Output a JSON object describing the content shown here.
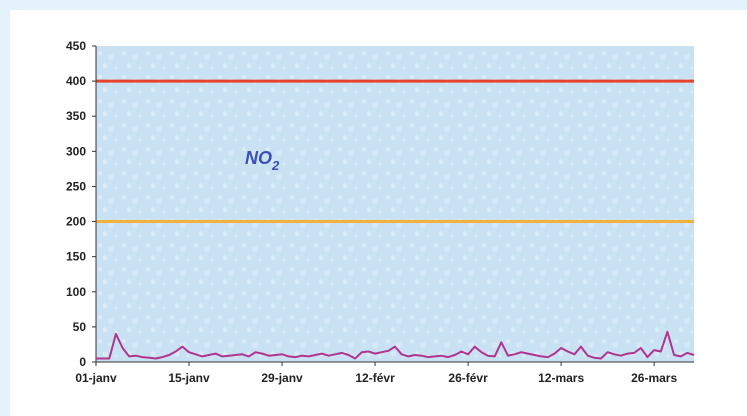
{
  "chart_data": {
    "type": "line",
    "title": "",
    "annotation": "NO 2",
    "annotation_parts": {
      "base": "NO",
      "subscript": "2"
    },
    "xlabel": "",
    "ylabel": "",
    "ylim": [
      0,
      450
    ],
    "yticks": [
      "0",
      "50",
      "100",
      "150",
      "200",
      "250",
      "300",
      "350",
      "400",
      "450"
    ],
    "xticks": [
      {
        "label": "01-janv",
        "day": 0
      },
      {
        "label": "15-janv",
        "day": 14
      },
      {
        "label": "29-janv",
        "day": 28
      },
      {
        "label": "12-févr",
        "day": 42
      },
      {
        "label": "26-févr",
        "day": 56
      },
      {
        "label": "12-mars",
        "day": 70
      },
      {
        "label": "26-mars",
        "day": 84
      }
    ],
    "x_range_days": [
      0,
      90
    ],
    "plot_background": "#c9e2f3",
    "grid": false,
    "legend": "none",
    "reference_lines": [
      {
        "value": 400,
        "color": "#e4432d"
      },
      {
        "value": 200,
        "color": "#f0b23a"
      }
    ],
    "series": [
      {
        "color": "#b0358f",
        "x": [
          0,
          1,
          2,
          3,
          4,
          5,
          6,
          7,
          8,
          9,
          10,
          11,
          12,
          13,
          14,
          15,
          16,
          17,
          18,
          19,
          20,
          21,
          22,
          23,
          24,
          25,
          26,
          27,
          28,
          29,
          30,
          31,
          32,
          33,
          34,
          35,
          36,
          37,
          38,
          39,
          40,
          41,
          42,
          43,
          44,
          45,
          46,
          47,
          48,
          49,
          50,
          51,
          52,
          53,
          54,
          55,
          56,
          57,
          58,
          59,
          60,
          61,
          62,
          63,
          64,
          65,
          66,
          67,
          68,
          69,
          70,
          71,
          72,
          73,
          74,
          75,
          76,
          77,
          78,
          79,
          80,
          81,
          82,
          83,
          84,
          85,
          86,
          87,
          88,
          89,
          90
        ],
        "values": [
          5,
          5,
          5,
          40,
          20,
          8,
          9,
          7,
          6,
          5,
          7,
          10,
          15,
          22,
          14,
          11,
          8,
          10,
          12,
          8,
          9,
          10,
          11,
          8,
          14,
          12,
          9,
          10,
          11,
          8,
          7,
          9,
          8,
          10,
          12,
          9,
          11,
          13,
          10,
          5,
          14,
          15,
          12,
          14,
          16,
          22,
          11,
          8,
          10,
          9,
          7,
          8,
          9,
          7,
          10,
          15,
          11,
          22,
          14,
          9,
          8,
          28,
          9,
          11,
          14,
          12,
          10,
          8,
          7,
          12,
          20,
          15,
          11,
          22,
          9,
          6,
          5,
          14,
          11,
          9,
          12,
          13,
          20,
          7,
          17,
          15,
          43,
          10,
          8,
          13,
          10
        ]
      }
    ]
  }
}
